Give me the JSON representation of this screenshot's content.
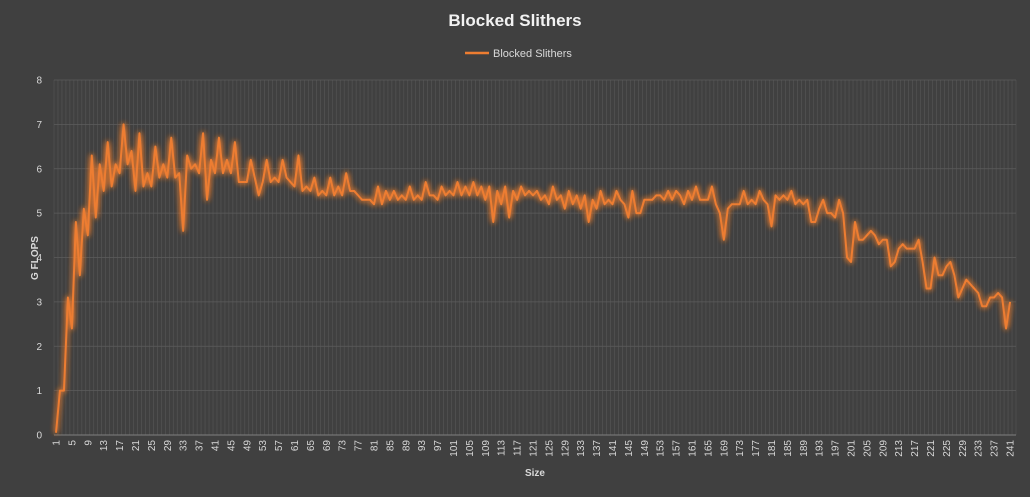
{
  "chart_data": {
    "type": "line",
    "title": "Blocked Slithers",
    "xlabel": "Size",
    "ylabel": "G FLOPS",
    "ylim": [
      0,
      8
    ],
    "yticks": [
      0,
      1,
      2,
      3,
      4,
      5,
      6,
      7,
      8
    ],
    "x_start": 1,
    "x_end": 242,
    "x_tick_labels": [
      1,
      5,
      9,
      13,
      17,
      21,
      25,
      29,
      33,
      37,
      41,
      45,
      49,
      53,
      57,
      61,
      65,
      69,
      73,
      77,
      81,
      85,
      89,
      93,
      97,
      101,
      105,
      109,
      113,
      117,
      121,
      125,
      129,
      133,
      137,
      141,
      145,
      149,
      153,
      157,
      161,
      165,
      169,
      173,
      177,
      181,
      185,
      189,
      193,
      197,
      201,
      205,
      209,
      213,
      217,
      221,
      225,
      229,
      233,
      237,
      241
    ],
    "grid": "vertical and horizontal gridlines",
    "legend_position": "top",
    "colors": {
      "series": "#ED7D31",
      "background": "#404040",
      "grid": "#595959"
    },
    "series": [
      {
        "name": "Blocked Slithers",
        "values": [
          0.05,
          1.0,
          1.0,
          3.1,
          2.4,
          4.8,
          3.6,
          5.1,
          4.5,
          6.3,
          4.9,
          6.1,
          5.5,
          6.6,
          5.6,
          6.1,
          5.9,
          7.0,
          6.1,
          6.4,
          5.5,
          6.8,
          5.6,
          5.9,
          5.6,
          6.5,
          5.8,
          6.1,
          5.8,
          6.7,
          5.8,
          5.9,
          4.6,
          6.3,
          6.0,
          6.1,
          5.9,
          6.8,
          5.3,
          6.2,
          5.9,
          6.7,
          5.9,
          6.2,
          5.9,
          6.6,
          5.7,
          5.7,
          5.7,
          6.2,
          5.8,
          5.4,
          5.7,
          6.2,
          5.7,
          5.8,
          5.7,
          6.2,
          5.8,
          5.7,
          5.6,
          6.3,
          5.5,
          5.6,
          5.5,
          5.8,
          5.4,
          5.5,
          5.4,
          5.8,
          5.4,
          5.6,
          5.4,
          5.9,
          5.5,
          5.5,
          5.4,
          5.3,
          5.3,
          5.3,
          5.2,
          5.6,
          5.2,
          5.5,
          5.3,
          5.5,
          5.3,
          5.4,
          5.3,
          5.6,
          5.3,
          5.4,
          5.3,
          5.7,
          5.4,
          5.4,
          5.3,
          5.6,
          5.4,
          5.5,
          5.4,
          5.7,
          5.4,
          5.6,
          5.4,
          5.7,
          5.4,
          5.6,
          5.3,
          5.6,
          4.8,
          5.5,
          5.2,
          5.6,
          4.9,
          5.5,
          5.3,
          5.6,
          5.4,
          5.5,
          5.4,
          5.5,
          5.3,
          5.4,
          5.2,
          5.6,
          5.3,
          5.4,
          5.1,
          5.5,
          5.2,
          5.4,
          5.1,
          5.4,
          4.8,
          5.3,
          5.1,
          5.5,
          5.2,
          5.3,
          5.2,
          5.5,
          5.3,
          5.2,
          4.9,
          5.5,
          5.0,
          5.0,
          5.3,
          5.3,
          5.3,
          5.4,
          5.4,
          5.3,
          5.5,
          5.3,
          5.5,
          5.4,
          5.2,
          5.5,
          5.3,
          5.6,
          5.3,
          5.3,
          5.3,
          5.6,
          5.2,
          5.0,
          4.4,
          5.1,
          5.2,
          5.2,
          5.2,
          5.5,
          5.2,
          5.3,
          5.2,
          5.5,
          5.3,
          5.2,
          4.7,
          5.4,
          5.3,
          5.4,
          5.3,
          5.5,
          5.2,
          5.3,
          5.2,
          5.3,
          4.8,
          4.8,
          5.1,
          5.3,
          5.0,
          5.0,
          4.9,
          5.3,
          5.0,
          4.0,
          3.9,
          4.8,
          4.4,
          4.4,
          4.5,
          4.6,
          4.5,
          4.3,
          4.4,
          4.4,
          3.8,
          3.9,
          4.2,
          4.3,
          4.2,
          4.2,
          4.2,
          4.4,
          3.9,
          3.3,
          3.3,
          4.0,
          3.6,
          3.6,
          3.8,
          3.9,
          3.6,
          3.1,
          3.3,
          3.5,
          3.4,
          3.3,
          3.2,
          2.9,
          2.9,
          3.1,
          3.1,
          3.2,
          3.1,
          2.4,
          3.0
        ]
      }
    ]
  }
}
